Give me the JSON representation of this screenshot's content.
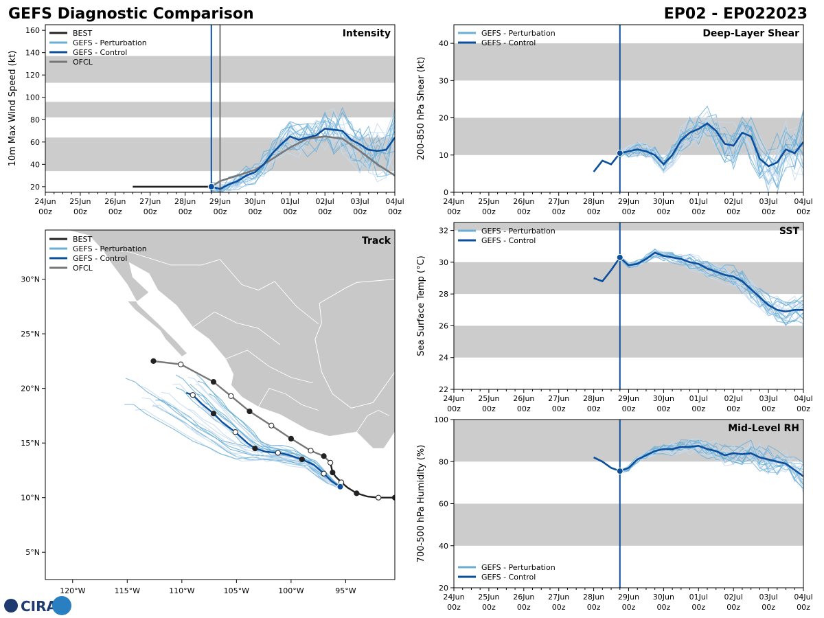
{
  "header": {
    "title_left": "GEFS Diagnostic Comparison",
    "title_right": "EP02 - EP022023"
  },
  "logo": {
    "text": "CIRA"
  },
  "colors": {
    "best": "#222222",
    "pert": "#6aaed6",
    "pert_light": "#c6dbef",
    "control": "#0b4f9c",
    "ofcl": "#777777",
    "band": "#cccccc",
    "land": "#c8c8c8"
  },
  "time_axis": {
    "labels": [
      "24Jun",
      "25Jun",
      "26Jun",
      "27Jun",
      "28Jun",
      "29Jun",
      "30Jun",
      "01Jul",
      "02Jul",
      "03Jul",
      "04Jul"
    ],
    "sublabel": "00z",
    "init_day": 4.75
  },
  "legend": {
    "best": "BEST",
    "pert": "GEFS - Perturbation",
    "control": "GEFS - Control",
    "ofcl": "OFCL"
  },
  "chart_data": [
    {
      "id": "intensity",
      "type": "line",
      "title": "Intensity",
      "ylabel": "10m Max Wind Speed (kt)",
      "ylim": [
        15,
        165
      ],
      "yticks": [
        20,
        40,
        60,
        80,
        100,
        120,
        140,
        160
      ],
      "bands": [
        [
          34,
          64
        ],
        [
          82,
          96
        ],
        [
          113,
          137
        ]
      ],
      "ofcl_line_day": 5.0,
      "series": [
        {
          "name": "BEST",
          "x": [
            2.5,
            3.0,
            3.5,
            4.0,
            4.5,
            4.75
          ],
          "y": [
            20,
            20,
            20,
            20,
            20,
            20
          ]
        },
        {
          "name": "OFCL",
          "x": [
            4.75,
            5.0,
            5.5,
            6.0,
            6.5,
            7.0,
            7.5,
            8.0,
            8.5,
            9.0,
            9.5,
            10.0
          ],
          "y": [
            20,
            25,
            30,
            35,
            45,
            55,
            63,
            65,
            63,
            52,
            40,
            30
          ]
        },
        {
          "name": "GEFS - Control",
          "x": [
            4.75,
            5.0,
            5.25,
            5.5,
            5.75,
            6.0,
            6.25,
            6.5,
            6.75,
            7.0,
            7.25,
            7.5,
            7.75,
            8.0,
            8.25,
            8.5,
            8.75,
            9.0,
            9.25,
            9.5,
            9.75,
            10.0
          ],
          "y": [
            20,
            18,
            22,
            25,
            30,
            33,
            40,
            50,
            58,
            65,
            62,
            64,
            66,
            72,
            71,
            70,
            62,
            58,
            53,
            52,
            53,
            64
          ]
        }
      ]
    },
    {
      "id": "shear",
      "type": "line",
      "title": "Deep-Layer Shear",
      "ylabel": "200-850 hPa Shear (kt)",
      "ylim": [
        0,
        45
      ],
      "yticks": [
        0,
        10,
        20,
        30,
        40
      ],
      "bands": [
        [
          10,
          20
        ],
        [
          30,
          40
        ]
      ],
      "series": [
        {
          "name": "GEFS - Control",
          "x": [
            4.0,
            4.25,
            4.5,
            4.75,
            5.0,
            5.25,
            5.5,
            5.75,
            6.0,
            6.25,
            6.5,
            6.75,
            7.0,
            7.25,
            7.5,
            7.75,
            8.0,
            8.25,
            8.5,
            8.75,
            9.0,
            9.25,
            9.5,
            9.75,
            10.0
          ],
          "y": [
            5.5,
            8.5,
            7.5,
            10.5,
            11,
            11.5,
            11,
            10,
            7.5,
            10,
            14,
            16,
            17,
            18.5,
            16.5,
            13,
            12.5,
            16,
            15,
            9,
            7,
            8,
            11.5,
            10.5,
            13.5
          ]
        }
      ]
    },
    {
      "id": "sst",
      "type": "line",
      "title": "SST",
      "ylabel": "Sea Surface Temp (°C)",
      "ylim": [
        22,
        32.5
      ],
      "yticks": [
        22,
        24,
        26,
        28,
        30,
        32
      ],
      "bands": [
        [
          24,
          26
        ],
        [
          28,
          30
        ],
        [
          32,
          32.5
        ]
      ],
      "series": [
        {
          "name": "GEFS - Control",
          "x": [
            4.0,
            4.25,
            4.5,
            4.75,
            5.0,
            5.25,
            5.5,
            5.75,
            6.0,
            6.25,
            6.5,
            6.75,
            7.0,
            7.25,
            7.5,
            7.75,
            8.0,
            8.25,
            8.5,
            8.75,
            9.0,
            9.25,
            9.5,
            9.75,
            10.0
          ],
          "y": [
            29.0,
            28.8,
            29.5,
            30.3,
            29.8,
            29.9,
            30.2,
            30.6,
            30.4,
            30.3,
            30.2,
            30.0,
            29.9,
            29.6,
            29.4,
            29.2,
            29.1,
            28.8,
            28.3,
            27.8,
            27.3,
            27.0,
            26.9,
            27.0,
            27.0
          ]
        }
      ]
    },
    {
      "id": "rh",
      "type": "line",
      "title": "Mid-Level RH",
      "ylabel": "700-500 hPa Humidity (%)",
      "ylim": [
        20,
        100
      ],
      "yticks": [
        20,
        40,
        60,
        80,
        100
      ],
      "bands": [
        [
          40,
          60
        ],
        [
          80,
          100
        ]
      ],
      "series": [
        {
          "name": "GEFS - Control",
          "x": [
            4.0,
            4.25,
            4.5,
            4.75,
            5.0,
            5.25,
            5.5,
            5.75,
            6.0,
            6.25,
            6.5,
            6.75,
            7.0,
            7.25,
            7.5,
            7.75,
            8.0,
            8.25,
            8.5,
            8.75,
            9.0,
            9.25,
            9.5,
            9.75,
            10.0
          ],
          "y": [
            82,
            80,
            77,
            75.5,
            77,
            81,
            83,
            85,
            86,
            86,
            87,
            87,
            87.5,
            86,
            85,
            83,
            84,
            83.5,
            84,
            82,
            81,
            80,
            79,
            76,
            73
          ]
        }
      ]
    },
    {
      "id": "track",
      "type": "scatter",
      "title": "Track",
      "xlim": [
        -122.5,
        -90.5
      ],
      "ylim": [
        2.5,
        34.5
      ],
      "xticks": [
        -120,
        -115,
        -110,
        -105,
        -100,
        -95
      ],
      "xtick_labels": [
        "120°W",
        "115°W",
        "110°W",
        "105°W",
        "100°W",
        "95°W"
      ],
      "yticks": [
        5,
        10,
        15,
        20,
        25,
        30
      ],
      "ytick_labels": [
        "5°N",
        "10°N",
        "15°N",
        "20°N",
        "25°N",
        "30°N"
      ],
      "series": [
        {
          "name": "BEST",
          "lon": [
            -90.5,
            -91.1,
            -92.0,
            -93.0,
            -94.0,
            -94.8,
            -95.4,
            -95.9,
            -96.2,
            -96.4
          ],
          "lat": [
            10.0,
            10.0,
            10.0,
            10.1,
            10.4,
            10.9,
            11.4,
            11.9,
            12.3,
            13.2
          ]
        },
        {
          "name": "OFCL",
          "lon": [
            -96.4,
            -97.0,
            -98.2,
            -100.0,
            -101.8,
            -103.8,
            -105.5,
            -107.1,
            -110.1,
            -112.6
          ],
          "lat": [
            13.2,
            13.8,
            14.3,
            15.4,
            16.6,
            17.9,
            19.3,
            20.6,
            22.2,
            22.5
          ]
        },
        {
          "name": "GEFS - Control",
          "lon": [
            -95.5,
            -96.3,
            -97.0,
            -97.9,
            -99.0,
            -100.2,
            -101.2,
            -102.3,
            -103.3,
            -104.0,
            -105.1,
            -106.3,
            -107.1,
            -108.2,
            -109.0,
            -109.6
          ],
          "lat": [
            11.0,
            11.5,
            12.2,
            13.0,
            13.5,
            13.9,
            14.1,
            14.2,
            14.5,
            15.0,
            16.0,
            16.9,
            17.7,
            18.6,
            19.4,
            19.6
          ]
        }
      ]
    }
  ]
}
